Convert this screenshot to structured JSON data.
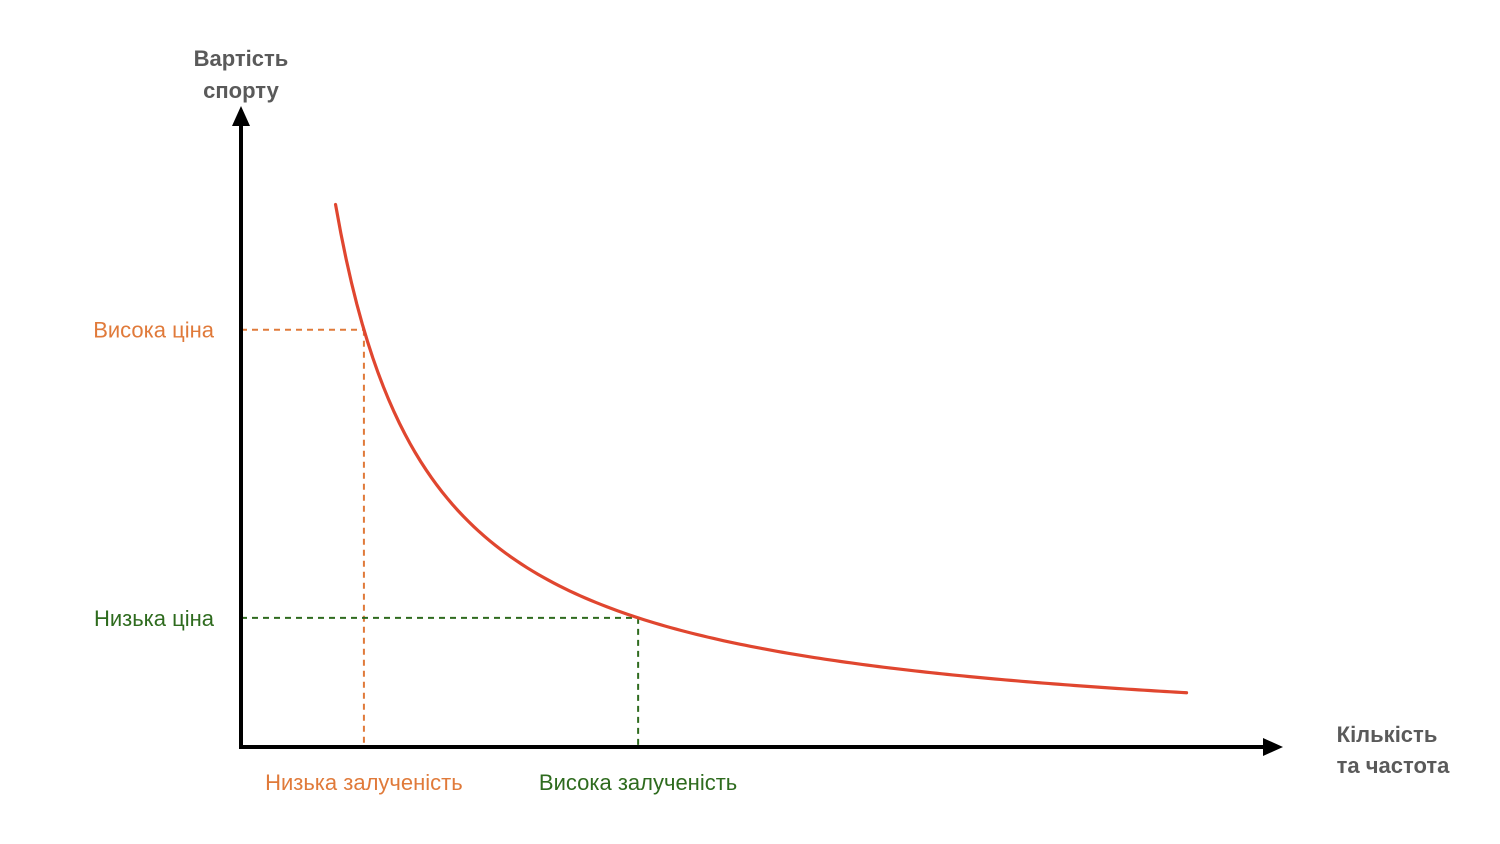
{
  "chart_data": {
    "type": "line",
    "title": "",
    "ylabel_lines": [
      "Вартість",
      "спорту"
    ],
    "xlabel_lines": [
      "Кількість",
      "та частота"
    ],
    "colors": {
      "axis": "#000000",
      "curve": "#e0462f",
      "high_price": "#e07a3a",
      "low_price": "#2e6b1e",
      "axis_title": "#5a5a5a"
    },
    "ticks_shown": false,
    "grid": false,
    "series": [
      {
        "color": "#e0462f",
        "points": [
          {
            "x": 0.5,
            "y": 1.0
          },
          {
            "x": 0.75,
            "y": 0.667
          },
          {
            "x": 1.0,
            "y": 0.5
          },
          {
            "x": 1.5,
            "y": 0.333
          },
          {
            "x": 2.0,
            "y": 0.25
          },
          {
            "x": 3.0,
            "y": 0.167
          },
          {
            "x": 4.0,
            "y": 0.125
          },
          {
            "x": 5.0,
            "y": 0.1
          }
        ]
      }
    ],
    "reference_levels": [
      {
        "key": "high_price",
        "y_label": "Висока ціна",
        "x_label": "Низька залученість",
        "x": 0.65,
        "color": "#e07a3a"
      },
      {
        "key": "low_price",
        "y_label": "Низька ціна",
        "x_label": "Висока залученість",
        "x": 2.1,
        "color": "#2e6b1e"
      }
    ]
  }
}
